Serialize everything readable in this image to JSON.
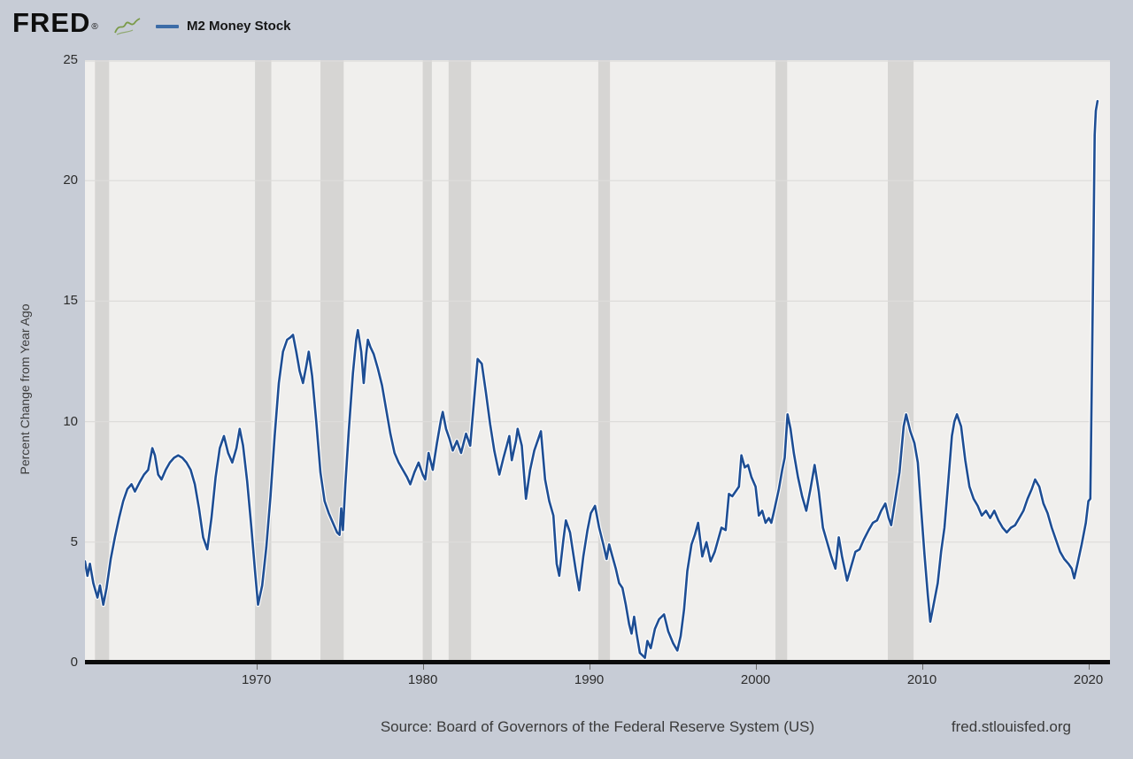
{
  "header": {
    "logo_text": "FRED",
    "logo_registered": "®",
    "legend": {
      "series_label": "M2 Money Stock",
      "swatch_color": "#3c6ca7"
    }
  },
  "y_axis": {
    "title": "Percent Change from Year Ago",
    "ticks": [
      0,
      5,
      10,
      15,
      20,
      25
    ],
    "min": 0,
    "max": 25
  },
  "x_axis": {
    "ticks": [
      1970,
      1980,
      1990,
      2000,
      2010,
      2020
    ]
  },
  "footer": {
    "source": "Source: Board of Governors of the Federal Reserve System (US)",
    "site": "fred.stlouisfed.org"
  },
  "colors": {
    "page_bg": "#c7ccd6",
    "plot_bg": "#f0efed",
    "recession_band": "#d6d5d3",
    "gridline": "#dddcda",
    "line": "#1e4e94",
    "line_casing": "#ffffff",
    "axis": "#0b0b0b",
    "logo_icon_green": "#7a9a48"
  },
  "chart_data": {
    "type": "line",
    "title": "M2 Money Stock",
    "xlabel": "",
    "ylabel": "Percent Change from Year Ago",
    "x_range": [
      1959.7,
      2021.3
    ],
    "y_range": [
      0,
      25
    ],
    "grid": true,
    "legend_position": "top-left",
    "x_tick_labels": [
      "1970",
      "1980",
      "1990",
      "2000",
      "2010",
      "2020"
    ],
    "y_tick_labels": [
      "0",
      "5",
      "10",
      "15",
      "20",
      "25"
    ],
    "recession_bands": [
      [
        1960.3,
        1961.15
      ],
      [
        1969.92,
        1970.9
      ],
      [
        1973.85,
        1975.25
      ],
      [
        1980.0,
        1980.55
      ],
      [
        1981.55,
        1982.9
      ],
      [
        1990.55,
        1991.25
      ],
      [
        2001.2,
        2001.9
      ],
      [
        2007.95,
        2009.5
      ]
    ],
    "series": [
      {
        "name": "M2 Money Stock",
        "units": "Percent Change from Year Ago",
        "color": "#1e4e94",
        "points": [
          [
            1959.7,
            4.2
          ],
          [
            1959.85,
            3.6
          ],
          [
            1960.0,
            4.1
          ],
          [
            1960.2,
            3.3
          ],
          [
            1960.45,
            2.7
          ],
          [
            1960.6,
            3.2
          ],
          [
            1960.8,
            2.4
          ],
          [
            1961.0,
            3.1
          ],
          [
            1961.25,
            4.3
          ],
          [
            1961.5,
            5.2
          ],
          [
            1961.75,
            6.0
          ],
          [
            1962.0,
            6.7
          ],
          [
            1962.25,
            7.2
          ],
          [
            1962.5,
            7.4
          ],
          [
            1962.7,
            7.1
          ],
          [
            1963.0,
            7.5
          ],
          [
            1963.25,
            7.8
          ],
          [
            1963.5,
            8.0
          ],
          [
            1963.75,
            8.9
          ],
          [
            1963.9,
            8.6
          ],
          [
            1964.1,
            7.8
          ],
          [
            1964.3,
            7.6
          ],
          [
            1964.55,
            8.0
          ],
          [
            1964.8,
            8.3
          ],
          [
            1965.05,
            8.5
          ],
          [
            1965.3,
            8.6
          ],
          [
            1965.55,
            8.5
          ],
          [
            1965.8,
            8.3
          ],
          [
            1966.05,
            8.0
          ],
          [
            1966.3,
            7.4
          ],
          [
            1966.55,
            6.4
          ],
          [
            1966.8,
            5.2
          ],
          [
            1967.05,
            4.7
          ],
          [
            1967.3,
            6.0
          ],
          [
            1967.55,
            7.7
          ],
          [
            1967.8,
            8.9
          ],
          [
            1968.05,
            9.4
          ],
          [
            1968.3,
            8.7
          ],
          [
            1968.55,
            8.3
          ],
          [
            1968.8,
            8.9
          ],
          [
            1969.0,
            9.7
          ],
          [
            1969.2,
            9.0
          ],
          [
            1969.45,
            7.5
          ],
          [
            1969.7,
            5.6
          ],
          [
            1969.92,
            3.8
          ],
          [
            1970.1,
            2.4
          ],
          [
            1970.35,
            3.2
          ],
          [
            1970.6,
            4.8
          ],
          [
            1970.85,
            6.9
          ],
          [
            1971.1,
            9.4
          ],
          [
            1971.35,
            11.6
          ],
          [
            1971.6,
            12.9
          ],
          [
            1971.85,
            13.4
          ],
          [
            1972.05,
            13.5
          ],
          [
            1972.2,
            13.6
          ],
          [
            1972.4,
            12.9
          ],
          [
            1972.6,
            12.1
          ],
          [
            1972.8,
            11.6
          ],
          [
            1973.0,
            12.3
          ],
          [
            1973.15,
            12.9
          ],
          [
            1973.35,
            11.9
          ],
          [
            1973.6,
            10.0
          ],
          [
            1973.85,
            7.9
          ],
          [
            1974.1,
            6.7
          ],
          [
            1974.35,
            6.2
          ],
          [
            1974.6,
            5.8
          ],
          [
            1974.85,
            5.4
          ],
          [
            1975.0,
            5.3
          ],
          [
            1975.1,
            6.4
          ],
          [
            1975.2,
            5.5
          ],
          [
            1975.35,
            7.4
          ],
          [
            1975.55,
            9.6
          ],
          [
            1975.8,
            12.0
          ],
          [
            1976.0,
            13.4
          ],
          [
            1976.1,
            13.8
          ],
          [
            1976.3,
            12.9
          ],
          [
            1976.45,
            11.6
          ],
          [
            1976.6,
            12.8
          ],
          [
            1976.7,
            13.4
          ],
          [
            1976.85,
            13.1
          ],
          [
            1977.05,
            12.8
          ],
          [
            1977.3,
            12.2
          ],
          [
            1977.55,
            11.5
          ],
          [
            1977.8,
            10.5
          ],
          [
            1978.05,
            9.5
          ],
          [
            1978.3,
            8.7
          ],
          [
            1978.55,
            8.3
          ],
          [
            1978.8,
            8.0
          ],
          [
            1979.05,
            7.7
          ],
          [
            1979.25,
            7.4
          ],
          [
            1979.5,
            7.9
          ],
          [
            1979.75,
            8.3
          ],
          [
            1980.0,
            7.8
          ],
          [
            1980.15,
            7.6
          ],
          [
            1980.35,
            8.7
          ],
          [
            1980.6,
            8.0
          ],
          [
            1980.85,
            9.1
          ],
          [
            1981.1,
            10.1
          ],
          [
            1981.2,
            10.4
          ],
          [
            1981.4,
            9.7
          ],
          [
            1981.6,
            9.3
          ],
          [
            1981.8,
            8.8
          ],
          [
            1982.05,
            9.2
          ],
          [
            1982.3,
            8.7
          ],
          [
            1982.6,
            9.5
          ],
          [
            1982.85,
            9.0
          ],
          [
            1983.05,
            10.6
          ],
          [
            1983.3,
            12.6
          ],
          [
            1983.55,
            12.4
          ],
          [
            1983.8,
            11.2
          ],
          [
            1984.05,
            9.9
          ],
          [
            1984.3,
            8.8
          ],
          [
            1984.6,
            7.8
          ],
          [
            1984.85,
            8.5
          ],
          [
            1985.05,
            9.0
          ],
          [
            1985.2,
            9.4
          ],
          [
            1985.35,
            8.4
          ],
          [
            1985.6,
            9.2
          ],
          [
            1985.7,
            9.7
          ],
          [
            1985.95,
            9.0
          ],
          [
            1986.2,
            6.8
          ],
          [
            1986.45,
            8.0
          ],
          [
            1986.7,
            8.8
          ],
          [
            1986.95,
            9.3
          ],
          [
            1987.1,
            9.6
          ],
          [
            1987.35,
            7.6
          ],
          [
            1987.6,
            6.7
          ],
          [
            1987.85,
            6.1
          ],
          [
            1988.05,
            4.1
          ],
          [
            1988.2,
            3.6
          ],
          [
            1988.45,
            5.1
          ],
          [
            1988.6,
            5.9
          ],
          [
            1988.85,
            5.4
          ],
          [
            1989.05,
            4.5
          ],
          [
            1989.2,
            3.8
          ],
          [
            1989.4,
            3.0
          ],
          [
            1989.65,
            4.4
          ],
          [
            1989.9,
            5.5
          ],
          [
            1990.1,
            6.2
          ],
          [
            1990.35,
            6.5
          ],
          [
            1990.6,
            5.6
          ],
          [
            1990.85,
            4.9
          ],
          [
            1991.05,
            4.3
          ],
          [
            1991.2,
            4.9
          ],
          [
            1991.4,
            4.4
          ],
          [
            1991.6,
            3.9
          ],
          [
            1991.8,
            3.3
          ],
          [
            1992.0,
            3.1
          ],
          [
            1992.2,
            2.4
          ],
          [
            1992.4,
            1.6
          ],
          [
            1992.55,
            1.2
          ],
          [
            1992.7,
            1.9
          ],
          [
            1992.85,
            1.2
          ],
          [
            1993.05,
            0.4
          ],
          [
            1993.35,
            0.2
          ],
          [
            1993.5,
            0.9
          ],
          [
            1993.7,
            0.6
          ],
          [
            1993.95,
            1.4
          ],
          [
            1994.2,
            1.8
          ],
          [
            1994.5,
            2.0
          ],
          [
            1994.75,
            1.3
          ],
          [
            1995.05,
            0.8
          ],
          [
            1995.3,
            0.5
          ],
          [
            1995.5,
            1.1
          ],
          [
            1995.7,
            2.2
          ],
          [
            1995.9,
            3.8
          ],
          [
            1996.15,
            4.9
          ],
          [
            1996.35,
            5.3
          ],
          [
            1996.55,
            5.8
          ],
          [
            1996.8,
            4.4
          ],
          [
            1997.05,
            5.0
          ],
          [
            1997.3,
            4.2
          ],
          [
            1997.55,
            4.6
          ],
          [
            1997.75,
            5.1
          ],
          [
            1997.95,
            5.6
          ],
          [
            1998.2,
            5.5
          ],
          [
            1998.4,
            7.0
          ],
          [
            1998.6,
            6.9
          ],
          [
            1998.8,
            7.1
          ],
          [
            1999.0,
            7.3
          ],
          [
            1999.15,
            8.6
          ],
          [
            1999.35,
            8.1
          ],
          [
            1999.55,
            8.2
          ],
          [
            1999.75,
            7.7
          ],
          [
            2000.0,
            7.3
          ],
          [
            2000.2,
            6.1
          ],
          [
            2000.4,
            6.3
          ],
          [
            2000.6,
            5.8
          ],
          [
            2000.8,
            6.0
          ],
          [
            2000.95,
            5.8
          ],
          [
            2001.15,
            6.4
          ],
          [
            2001.4,
            7.2
          ],
          [
            2001.6,
            8.0
          ],
          [
            2001.75,
            8.5
          ],
          [
            2001.92,
            10.3
          ],
          [
            2002.1,
            9.7
          ],
          [
            2002.3,
            8.7
          ],
          [
            2002.55,
            7.7
          ],
          [
            2002.8,
            6.9
          ],
          [
            2003.05,
            6.3
          ],
          [
            2003.3,
            7.2
          ],
          [
            2003.55,
            8.2
          ],
          [
            2003.8,
            7.1
          ],
          [
            2004.05,
            5.6
          ],
          [
            2004.3,
            5.0
          ],
          [
            2004.55,
            4.4
          ],
          [
            2004.8,
            3.9
          ],
          [
            2005.0,
            5.2
          ],
          [
            2005.2,
            4.4
          ],
          [
            2005.5,
            3.4
          ],
          [
            2005.75,
            4.0
          ],
          [
            2006.0,
            4.6
          ],
          [
            2006.25,
            4.7
          ],
          [
            2006.5,
            5.1
          ],
          [
            2006.8,
            5.5
          ],
          [
            2007.05,
            5.8
          ],
          [
            2007.3,
            5.9
          ],
          [
            2007.55,
            6.3
          ],
          [
            2007.8,
            6.6
          ],
          [
            2008.0,
            6.0
          ],
          [
            2008.15,
            5.7
          ],
          [
            2008.4,
            6.8
          ],
          [
            2008.65,
            7.9
          ],
          [
            2008.9,
            9.8
          ],
          [
            2009.05,
            10.3
          ],
          [
            2009.3,
            9.6
          ],
          [
            2009.55,
            9.1
          ],
          [
            2009.75,
            8.3
          ],
          [
            2009.95,
            6.4
          ],
          [
            2010.15,
            4.5
          ],
          [
            2010.35,
            2.8
          ],
          [
            2010.5,
            1.7
          ],
          [
            2010.7,
            2.4
          ],
          [
            2010.95,
            3.3
          ],
          [
            2011.15,
            4.6
          ],
          [
            2011.35,
            5.6
          ],
          [
            2011.6,
            7.7
          ],
          [
            2011.8,
            9.4
          ],
          [
            2011.95,
            10.0
          ],
          [
            2012.1,
            10.3
          ],
          [
            2012.35,
            9.8
          ],
          [
            2012.6,
            8.4
          ],
          [
            2012.85,
            7.3
          ],
          [
            2013.1,
            6.8
          ],
          [
            2013.35,
            6.5
          ],
          [
            2013.6,
            6.1
          ],
          [
            2013.85,
            6.3
          ],
          [
            2014.1,
            6.0
          ],
          [
            2014.35,
            6.3
          ],
          [
            2014.6,
            5.9
          ],
          [
            2014.85,
            5.6
          ],
          [
            2015.1,
            5.4
          ],
          [
            2015.35,
            5.6
          ],
          [
            2015.6,
            5.7
          ],
          [
            2015.85,
            6.0
          ],
          [
            2016.1,
            6.3
          ],
          [
            2016.35,
            6.8
          ],
          [
            2016.6,
            7.2
          ],
          [
            2016.8,
            7.6
          ],
          [
            2017.05,
            7.3
          ],
          [
            2017.3,
            6.6
          ],
          [
            2017.55,
            6.2
          ],
          [
            2017.8,
            5.6
          ],
          [
            2018.05,
            5.1
          ],
          [
            2018.3,
            4.6
          ],
          [
            2018.55,
            4.3
          ],
          [
            2018.8,
            4.1
          ],
          [
            2019.0,
            3.9
          ],
          [
            2019.15,
            3.5
          ],
          [
            2019.35,
            4.1
          ],
          [
            2019.6,
            4.9
          ],
          [
            2019.85,
            5.8
          ],
          [
            2020.0,
            6.7
          ],
          [
            2020.12,
            6.8
          ],
          [
            2020.2,
            11.1
          ],
          [
            2020.3,
            16.9
          ],
          [
            2020.38,
            21.9
          ],
          [
            2020.45,
            22.9
          ],
          [
            2020.55,
            23.3
          ]
        ]
      }
    ]
  }
}
